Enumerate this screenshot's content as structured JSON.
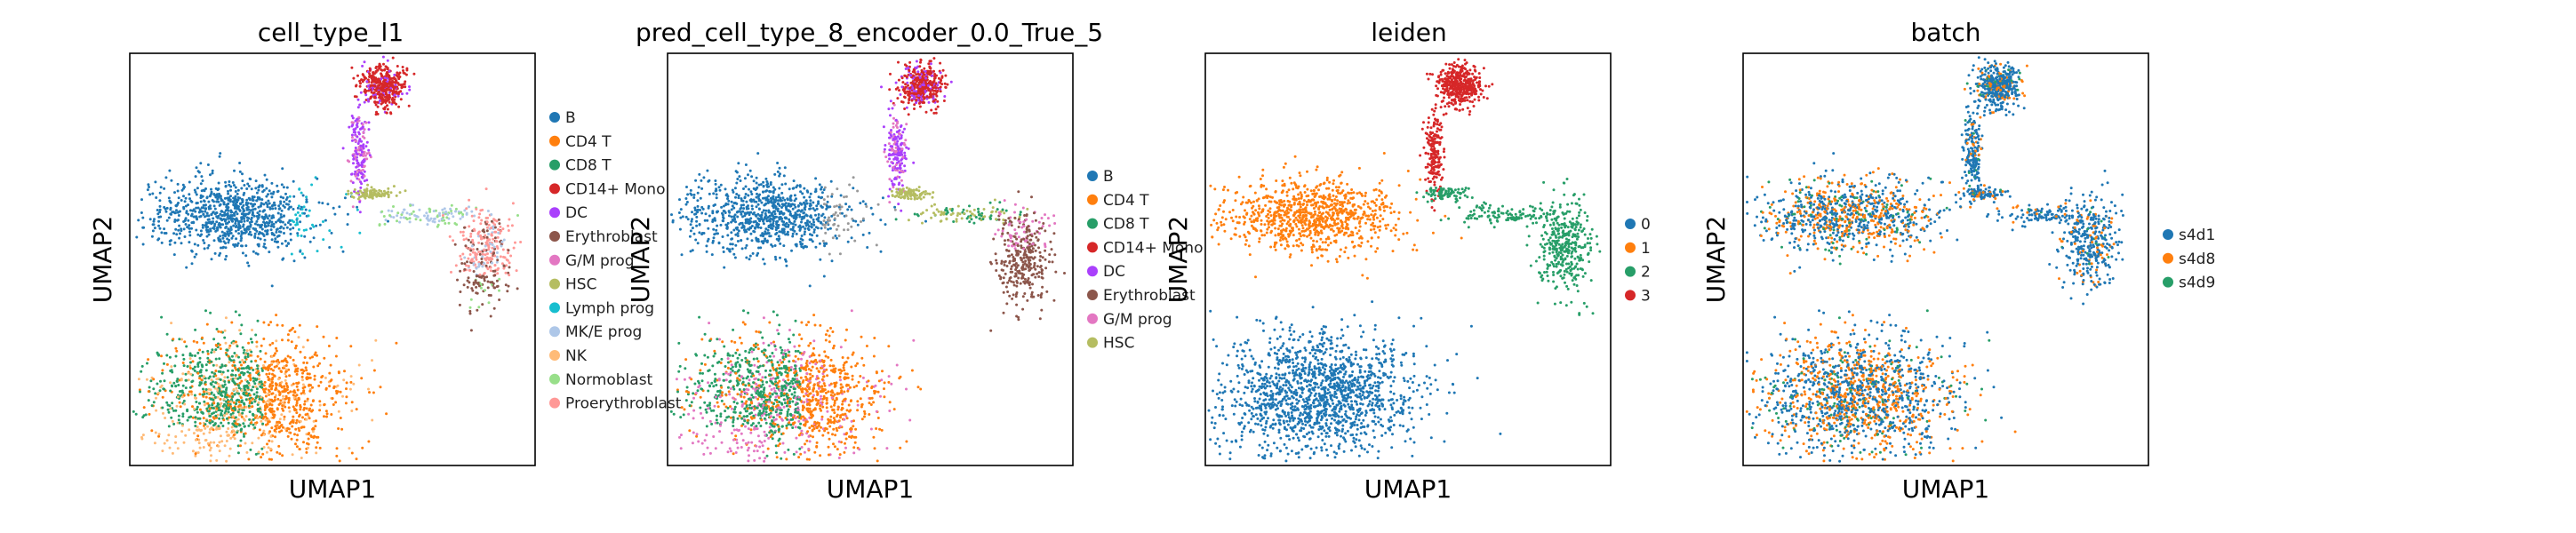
{
  "chart_data": [
    {
      "type": "scatter",
      "title": "cell_type_l1",
      "xlabel": "UMAP1",
      "ylabel": "UMAP2",
      "grid": false,
      "legend_position": "right",
      "legend": [
        {
          "name": "B",
          "color": "#1f77b4"
        },
        {
          "name": "CD4 T",
          "color": "#ff7f0e"
        },
        {
          "name": "CD8 T",
          "color": "#279e68"
        },
        {
          "name": "CD14+ Mono",
          "color": "#d62728"
        },
        {
          "name": "DC",
          "color": "#aa40fc"
        },
        {
          "name": "Erythroblast",
          "color": "#8c564b"
        },
        {
          "name": "G/M prog",
          "color": "#e377c2"
        },
        {
          "name": "HSC",
          "color": "#b5bd61"
        },
        {
          "name": "Lymph prog",
          "color": "#17becf"
        },
        {
          "name": "MK/E prog",
          "color": "#aec7e8"
        },
        {
          "name": "NK",
          "color": "#ffbb78"
        },
        {
          "name": "Normoblast",
          "color": "#98df8a"
        },
        {
          "name": "Proerythroblast",
          "color": "#ff9896"
        }
      ]
    },
    {
      "type": "scatter",
      "title": "pred_cell_type_8_encoder_0.0_True_5",
      "xlabel": "UMAP1",
      "ylabel": "UMAP2",
      "grid": false,
      "legend_position": "right",
      "legend": [
        {
          "name": "B",
          "color": "#1f77b4"
        },
        {
          "name": "CD4 T",
          "color": "#ff7f0e"
        },
        {
          "name": "CD8 T",
          "color": "#279e68"
        },
        {
          "name": "CD14+ Mono",
          "color": "#d62728"
        },
        {
          "name": "DC",
          "color": "#aa40fc"
        },
        {
          "name": "Erythroblast",
          "color": "#8c564b"
        },
        {
          "name": "G/M prog",
          "color": "#e377c2"
        },
        {
          "name": "HSC",
          "color": "#b5bd61"
        }
      ]
    },
    {
      "type": "scatter",
      "title": "leiden",
      "xlabel": "UMAP1",
      "ylabel": "UMAP2",
      "grid": false,
      "legend_position": "right",
      "legend": [
        {
          "name": "0",
          "color": "#1f77b4"
        },
        {
          "name": "1",
          "color": "#ff7f0e"
        },
        {
          "name": "2",
          "color": "#279e68"
        },
        {
          "name": "3",
          "color": "#d62728"
        }
      ]
    },
    {
      "type": "scatter",
      "title": "batch",
      "xlabel": "UMAP1",
      "ylabel": "UMAP2",
      "grid": false,
      "legend_position": "right",
      "legend": [
        {
          "name": "s4d1",
          "color": "#1f77b4"
        },
        {
          "name": "s4d8",
          "color": "#ff7f0e"
        },
        {
          "name": "s4d9",
          "color": "#279e68"
        }
      ]
    }
  ]
}
